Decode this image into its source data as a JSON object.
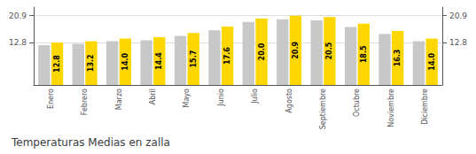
{
  "chart_data": {
    "type": "bar",
    "title": "Temperaturas Medias en zalla",
    "categories": [
      "Enero",
      "Febrero",
      "Marzo",
      "Abril",
      "Mayo",
      "Junio",
      "Julio",
      "Agosto",
      "Septiembre",
      "Octubre",
      "Noviembre",
      "Diciembre"
    ],
    "series": [
      {
        "color": "#C8C8C8",
        "values": [
          12.0,
          12.4,
          13.2,
          13.5,
          14.8,
          16.5,
          19.0,
          19.8,
          19.5,
          17.5,
          15.4,
          13.2
        ]
      },
      {
        "color": "#FFD700",
        "values": [
          12.8,
          13.2,
          14.0,
          14.4,
          15.7,
          17.6,
          20.0,
          20.9,
          20.5,
          18.5,
          16.3,
          14.0
        ],
        "value_labels": [
          "12.8",
          "13.2",
          "14.0",
          "14.4",
          "15.7",
          "17.6",
          "20.0",
          "20.9",
          "20.5",
          "18.5",
          "16.3",
          "14.0"
        ],
        "data_labels": true
      }
    ],
    "ylim": [
      0,
      23.5
    ],
    "yticks": [
      12.8,
      20.9
    ],
    "y2lim": [
      0,
      23.5
    ],
    "y2ticks": [
      12.8,
      20.9
    ],
    "grid": true
  }
}
